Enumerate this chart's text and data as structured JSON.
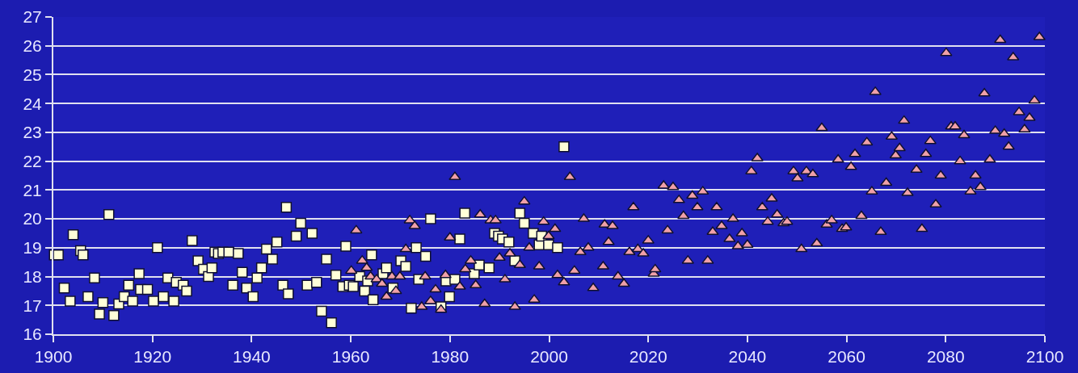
{
  "chart_data": {
    "type": "scatter",
    "xlim": [
      1900,
      2100
    ],
    "xticks": [
      1900,
      1920,
      1940,
      1960,
      1980,
      2000,
      2020,
      2040,
      2060,
      2080,
      2100
    ],
    "ylim": [
      16,
      27
    ],
    "yticks": [
      16,
      17,
      18,
      19,
      20,
      21,
      22,
      23,
      24,
      25,
      26,
      27
    ],
    "grid": "y",
    "series": [
      {
        "color": "#ffffd8",
        "marker": "square",
        "x": [
          1900.2,
          1901,
          1902.2,
          1903.4,
          1904,
          1905.5,
          1906,
          1907,
          1908.3,
          1909.3,
          1910,
          1911.2,
          1912.2,
          1913.2,
          1914.3,
          1915.2,
          1916,
          1917.3,
          1917.6,
          1919,
          1920.2,
          1921,
          1922.2,
          1923.1,
          1924.3,
          1924.8,
          1926.2,
          1926.9,
          1928,
          1929.2,
          1930.3,
          1931.3,
          1932,
          1932.6,
          1933.3,
          1934.2,
          1935.4,
          1936.2,
          1937.3,
          1938.1,
          1939,
          1940.3,
          1941.1,
          1942,
          1943,
          1944.2,
          1945.1,
          1946.3,
          1947,
          1947.4,
          1949,
          1949.9,
          1951.2,
          1952.2,
          1953.1,
          1954.1,
          1955.1,
          1956.1,
          1957,
          1958.4,
          1959,
          1959.7,
          1960.5,
          1961.8,
          1962.8,
          1963.4,
          1964.2,
          1964.5,
          1966.5,
          1967.2,
          1968.5,
          1970.1,
          1971.1,
          1972.2,
          1973.2,
          1973.7,
          1975.1,
          1976.1,
          1978.2,
          1979.2,
          1979.9,
          1981,
          1982,
          1983,
          1984.9,
          1985.9,
          1987.9,
          1989,
          1989.8,
          1990.6,
          1991.9,
          1993.1,
          1994.1,
          1995,
          1996.8,
          1998,
          1998.5,
          1999.9,
          2001.7,
          2003
        ],
        "values": [
          18.75,
          18.75,
          17.6,
          17.15,
          19.45,
          18.9,
          18.75,
          17.3,
          17.95,
          16.7,
          17.1,
          20.15,
          16.65,
          17.05,
          17.3,
          17.7,
          17.15,
          18.1,
          17.55,
          17.55,
          17.15,
          19.0,
          17.3,
          17.95,
          17.15,
          17.8,
          17.7,
          17.5,
          19.25,
          18.55,
          18.25,
          18.0,
          18.3,
          18.85,
          18.8,
          18.85,
          18.85,
          17.7,
          18.8,
          18.15,
          17.6,
          17.3,
          17.95,
          18.3,
          18.95,
          18.6,
          19.2,
          17.7,
          20.4,
          17.4,
          19.4,
          19.85,
          17.7,
          19.5,
          17.8,
          16.8,
          18.6,
          16.4,
          18.05,
          17.65,
          19.05,
          17.7,
          17.65,
          18.0,
          17.5,
          17.85,
          18.75,
          17.2,
          18.1,
          18.3,
          17.6,
          18.55,
          18.35,
          16.9,
          19.0,
          17.9,
          18.7,
          20.0,
          16.95,
          17.85,
          17.3,
          17.9,
          19.3,
          20.2,
          18.1,
          18.4,
          18.3,
          19.5,
          19.4,
          19.3,
          19.2,
          18.55,
          20.2,
          19.85,
          19.5,
          19.1,
          19.4,
          19.1,
          19.0,
          22.5
        ]
      },
      {
        "color": "#f0a0a8",
        "marker": "triangle",
        "x": [
          1960.1,
          1961.1,
          1962.3,
          1963.2,
          1964,
          1965.2,
          1966.3,
          1967.2,
          1968.3,
          1969.1,
          1969.9,
          1971.1,
          1971.9,
          1972.9,
          1974.3,
          1975,
          1976.1,
          1977.1,
          1978.2,
          1979.1,
          1980,
          1981,
          1982,
          1983.1,
          1984.2,
          1985.2,
          1986.1,
          1987,
          1988.2,
          1989.2,
          1990,
          1991.1,
          1992.1,
          1993.1,
          1994.1,
          1995,
          1996,
          1997,
          1998,
          1998.9,
          1999.9,
          2001.2,
          2001.7,
          2003,
          2004.2,
          2005.1,
          2006.3,
          2007,
          2007.9,
          2008.9,
          2010.9,
          2011.2,
          2012,
          2012.8,
          2013.9,
          2015.1,
          2016.2,
          2017,
          2017.9,
          2019,
          2020,
          2021.1,
          2021.4,
          2023.1,
          2023.9,
          2025,
          2026.2,
          2027.1,
          2028,
          2028.9,
          2029.9,
          2031,
          2032,
          2033,
          2033.8,
          2034.8,
          2036.4,
          2037.1,
          2038.1,
          2038.9,
          2040,
          2040.8,
          2042,
          2043,
          2044.1,
          2044.9,
          2046,
          2047.3,
          2048,
          2049.3,
          2050.1,
          2050.9,
          2051.9,
          2053.2,
          2054,
          2055,
          2056,
          2057,
          2058.3,
          2059.1,
          2059.9,
          2060.9,
          2061.7,
          2063,
          2064.1,
          2065.1,
          2065.8,
          2066.9,
          2068,
          2069.1,
          2069.9,
          2070.7,
          2071.6,
          2072.3,
          2074.1,
          2075.2,
          2076,
          2076.9,
          2078,
          2079,
          2080.1,
          2081.1,
          2081.9,
          2082.9,
          2083.7,
          2085,
          2086,
          2087,
          2087.8,
          2088.9,
          2090,
          2091,
          2091.8,
          2092.7,
          2093.6,
          2094.8,
          2095.9,
          2096.9,
          2097.9,
          2098.9
        ],
        "values": [
          18.2,
          19.6,
          18.55,
          18.3,
          18.0,
          17.9,
          17.75,
          17.3,
          18.0,
          17.5,
          18.0,
          18.95,
          19.95,
          19.75,
          16.95,
          18.0,
          17.15,
          17.55,
          16.85,
          18.05,
          19.35,
          21.45,
          17.65,
          18.25,
          18.55,
          17.7,
          20.15,
          17.05,
          19.95,
          19.95,
          18.65,
          17.9,
          18.8,
          16.95,
          18.4,
          20.6,
          19.0,
          17.2,
          18.35,
          19.9,
          19.4,
          19.65,
          18.05,
          17.8,
          21.45,
          18.2,
          18.85,
          20.0,
          19.0,
          17.6,
          18.35,
          19.8,
          19.2,
          19.75,
          18.0,
          17.75,
          18.85,
          20.4,
          18.95,
          18.8,
          19.25,
          18.1,
          18.25,
          21.15,
          19.6,
          21.1,
          20.65,
          20.1,
          18.55,
          20.8,
          20.4,
          20.95,
          18.55,
          19.55,
          20.4,
          19.75,
          19.3,
          20.0,
          19.05,
          19.5,
          19.1,
          21.65,
          22.1,
          20.4,
          19.9,
          20.7,
          20.15,
          19.85,
          19.9,
          21.65,
          21.4,
          18.95,
          21.65,
          21.55,
          19.15,
          23.15,
          19.8,
          19.95,
          22.05,
          19.65,
          19.7,
          21.8,
          22.25,
          20.1,
          22.65,
          20.95,
          24.4,
          19.55,
          21.25,
          22.85,
          22.2,
          22.45,
          23.4,
          20.9,
          21.7,
          19.65,
          22.25,
          22.7,
          20.5,
          21.5,
          25.75,
          23.2,
          23.2,
          22.0,
          22.9,
          20.95,
          21.5,
          21.1,
          24.35,
          22.05,
          23.05,
          26.2,
          22.95,
          22.5,
          25.6,
          23.7,
          23.1,
          23.5,
          24.1,
          26.3
        ]
      }
    ]
  }
}
